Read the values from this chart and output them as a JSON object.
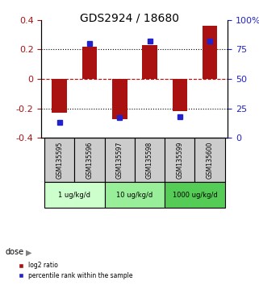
{
  "title": "GDS2924 / 18680",
  "samples": [
    "GSM135595",
    "GSM135596",
    "GSM135597",
    "GSM135598",
    "GSM135599",
    "GSM135600"
  ],
  "log2_ratio": [
    -0.23,
    0.22,
    -0.27,
    0.23,
    -0.22,
    0.36
  ],
  "percentile": [
    13,
    80,
    17,
    82,
    18,
    82
  ],
  "bar_color": "#aa1111",
  "blue_color": "#2222cc",
  "dose_groups": [
    {
      "label": "1 ug/kg/d",
      "indices": [
        0,
        1
      ],
      "color": "#ccffcc"
    },
    {
      "label": "10 ug/kg/d",
      "indices": [
        2,
        3
      ],
      "color": "#99ee99"
    },
    {
      "label": "1000 ug/kg/d",
      "indices": [
        4,
        5
      ],
      "color": "#55cc55"
    }
  ],
  "ylim_left": [
    -0.4,
    0.4
  ],
  "ylim_right": [
    0,
    100
  ],
  "yticks_left": [
    -0.4,
    -0.2,
    0,
    0.2,
    0.4
  ],
  "yticks_right": [
    0,
    25,
    50,
    75,
    100
  ],
  "ytick_labels_right": [
    "0",
    "25",
    "50",
    "75",
    "100%"
  ],
  "hlines": [
    -0.2,
    0.2
  ],
  "zero_line_color": "#cc0000",
  "grid_color": "#000000",
  "legend_red_label": "log2 ratio",
  "legend_blue_label": "percentile rank within the sample",
  "dose_label": "dose",
  "sample_box_color": "#cccccc",
  "fig_width": 3.21,
  "fig_height": 3.54,
  "dpi": 100
}
